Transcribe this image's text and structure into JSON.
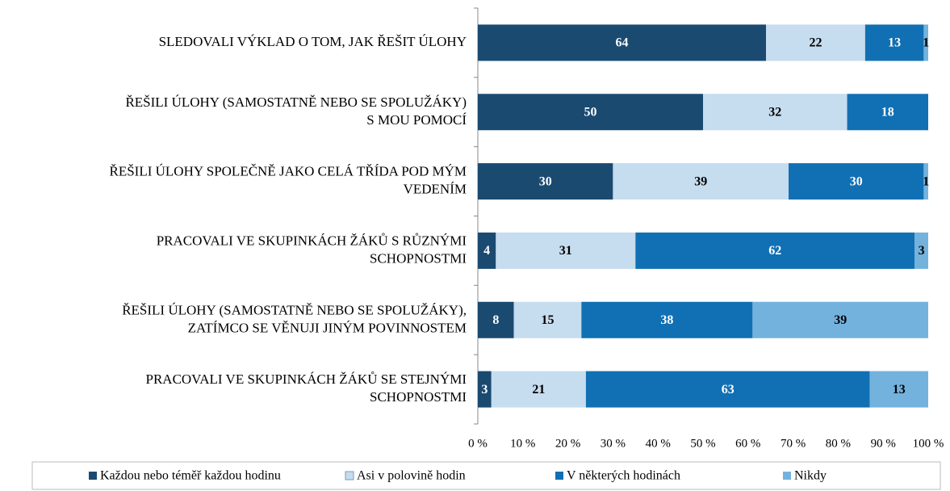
{
  "chart_data": {
    "type": "stacked_barh",
    "categories": [
      "SLEDOVALI VÝKLAD O TOM, JAK ŘEŠIT ÚLOHY",
      "ŘEŠILI ÚLOHY (SAMOSTATNĚ NEBO SE SPOLUŽÁKY)\nS MOU POMOCÍ",
      "ŘEŠILI ÚLOHY SPOLEČNĚ JAKO CELÁ TŘÍDA POD MÝM\nVEDENÍM",
      "PRACOVALI VE SKUPINKÁCH ŽÁKŮ S RŮZNÝMI\nSCHOPNOSTMI",
      "ŘEŠILI ÚLOHY (SAMOSTATNĚ NEBO SE SPOLUŽÁKY),\nZATÍMCO SE VĚNUJI JINÝM POVINNOSTEM",
      "PRACOVALI VE SKUPINKÁCH ŽÁKŮ SE STEJNÝMI\nSCHOPNOSTMI"
    ],
    "series": [
      {
        "name": "Každou nebo téměř každou hodinu",
        "color": "#1b4a71",
        "values": [
          64,
          50,
          30,
          4,
          8,
          3
        ]
      },
      {
        "name": "Asi v polovině hodin",
        "color": "#c6dcef",
        "values": [
          22,
          32,
          39,
          31,
          15,
          21
        ]
      },
      {
        "name": "V některých hodinách",
        "color": "#1170b3",
        "values": [
          13,
          18,
          30,
          62,
          38,
          63
        ]
      },
      {
        "name": "Nikdy",
        "color": "#74b2de",
        "values": [
          1,
          null,
          1,
          3,
          39,
          13
        ]
      }
    ],
    "xlim": [
      0,
      100
    ],
    "xticks": [
      {
        "value": 0,
        "label": "0 %"
      },
      {
        "value": 10,
        "label": "10 %"
      },
      {
        "value": 20,
        "label": "20 %"
      },
      {
        "value": 30,
        "label": "30 %"
      },
      {
        "value": 40,
        "label": "40 %"
      },
      {
        "value": 50,
        "label": "50 %"
      },
      {
        "value": 60,
        "label": "60 %"
      },
      {
        "value": 70,
        "label": "70 %"
      },
      {
        "value": 80,
        "label": "80 %"
      },
      {
        "value": 90,
        "label": "90 %"
      },
      {
        "value": 100,
        "label": "100 %"
      }
    ],
    "legend": "bottom"
  }
}
